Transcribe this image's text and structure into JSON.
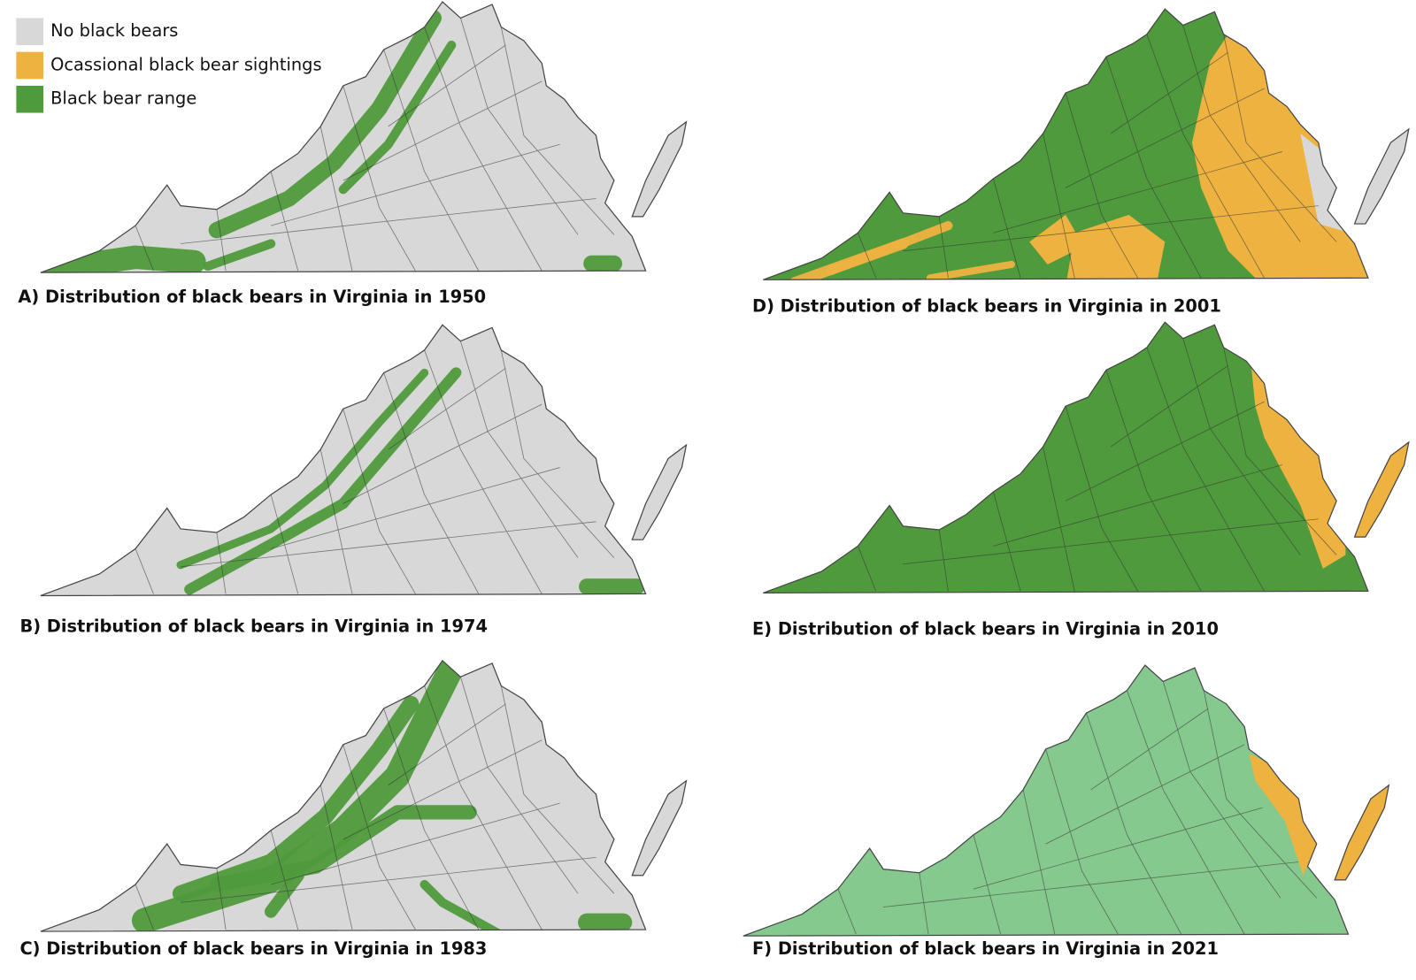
{
  "legend": [
    {
      "label": "No black bears",
      "color": "#d8d8d8"
    },
    {
      "label": "Ocassional black bear sightings",
      "color": "#eeb240"
    },
    {
      "label": "Black bear range",
      "color": "#4f9a3c"
    }
  ],
  "panels": [
    {
      "caption": "A) Distribution of black bears in Virginia in 1950"
    },
    {
      "caption": "B) Distribution of black bears in Virginia in 1974"
    },
    {
      "caption": "C) Distribution of black bears in Virginia in 1983"
    },
    {
      "caption": "D) Distribution of black bears in Virginia in 2001"
    },
    {
      "caption": "E) Distribution of black bears in Virginia in 2010"
    },
    {
      "caption": "F) Distribution of black bears in Virginia in 2021"
    }
  ]
}
